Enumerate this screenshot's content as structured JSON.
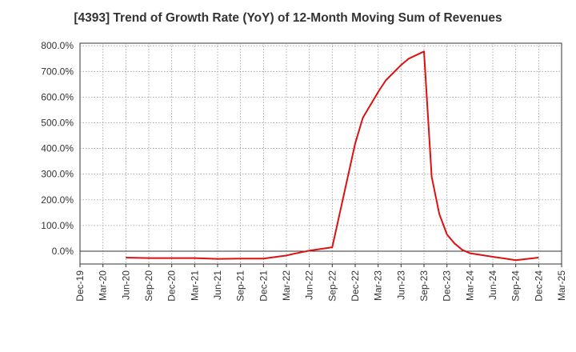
{
  "chart_data": {
    "type": "line",
    "title": "[4393]  Trend of Growth Rate (YoY) of 12-Month Moving Sum of Revenues",
    "xlabel": "",
    "ylabel": "",
    "y_tick_labels": [
      "0.0%",
      "100.0%",
      "200.0%",
      "300.0%",
      "400.0%",
      "500.0%",
      "600.0%",
      "700.0%",
      "800.0%"
    ],
    "ylim": [
      -50,
      810
    ],
    "grid": true,
    "x_tick_labels": [
      "Dec-19",
      "Mar-20",
      "Jun-20",
      "Sep-20",
      "Dec-20",
      "Mar-21",
      "Jun-21",
      "Sep-21",
      "Dec-21",
      "Mar-22",
      "Jun-22",
      "Sep-22",
      "Dec-22",
      "Mar-23",
      "Jun-23",
      "Sep-23",
      "Dec-23",
      "Mar-24",
      "Jun-24",
      "Sep-24",
      "Dec-24",
      "Mar-25"
    ],
    "line_color": "#dd1111",
    "series": [
      {
        "x": [
          "Jun-20",
          "Sep-20",
          "Dec-20",
          "Mar-21",
          "Jun-21",
          "Sep-21",
          "Dec-21",
          "Mar-22",
          "Apr-22",
          "Jun-22",
          "Sep-22",
          "Dec-22",
          "Jan-23",
          "Mar-23",
          "Apr-23",
          "Jun-23",
          "Jul-23",
          "Sep-23",
          "Oct-23",
          "Nov-23",
          "Dec-23",
          "Jan-24",
          "Feb-24",
          "Mar-24",
          "Jun-24",
          "Sep-24",
          "Dec-24"
        ],
        "y": [
          -25,
          -27,
          -27,
          -27,
          -30,
          -29,
          -29,
          -17,
          -10,
          2,
          15,
          420,
          520,
          620,
          665,
          725,
          750,
          778,
          290,
          145,
          65,
          30,
          5,
          -8,
          -22,
          -35,
          -25
        ]
      }
    ]
  }
}
